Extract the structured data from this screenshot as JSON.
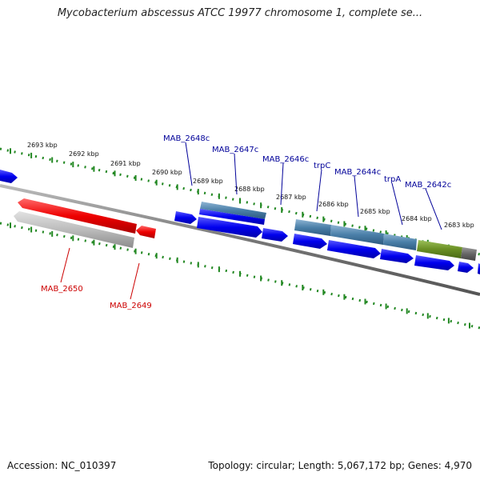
{
  "header": {
    "title": "Mycobacterium abscessus ATCC 19977 chromosome 1, complete se..."
  },
  "footer": {
    "accession": "Accession: NC_010397",
    "summary": "Topology: circular; Length: 5,067,172 bp; Genes: 4,970"
  },
  "colors": {
    "forward_gene": "#0000ee",
    "reverse_gene": "#ee0000",
    "forward_label": "#000099",
    "reverse_label": "#cc0000",
    "tick": "#228822",
    "backbone": "#777777",
    "selected_blue": "#4a7fa8",
    "selected_green": "#6a8f24",
    "selected_gray": "#b8b8b8"
  },
  "scale": {
    "unit": "kbp",
    "ticks": [
      {
        "label": "2693 kbp"
      },
      {
        "label": "2692 kbp"
      },
      {
        "label": "2691 kbp"
      },
      {
        "label": "2690 kbp"
      },
      {
        "label": "2689 kbp"
      },
      {
        "label": "2688 kbp"
      },
      {
        "label": "2687 kbp"
      },
      {
        "label": "2686 kbp"
      },
      {
        "label": "2685 kbp"
      },
      {
        "label": "2684 kbp"
      },
      {
        "label": "2683 kbp"
      }
    ]
  },
  "gene_labels": {
    "forward": [
      {
        "name": "MAB_2648c"
      },
      {
        "name": "MAB_2647c"
      },
      {
        "name": "MAB_2646c"
      },
      {
        "name": "trpC"
      },
      {
        "name": "MAB_2644c"
      },
      {
        "name": "trpA"
      },
      {
        "name": "MAB_2642c"
      }
    ],
    "reverse": [
      {
        "name": "MAB_2650"
      },
      {
        "name": "MAB_2649"
      }
    ]
  }
}
